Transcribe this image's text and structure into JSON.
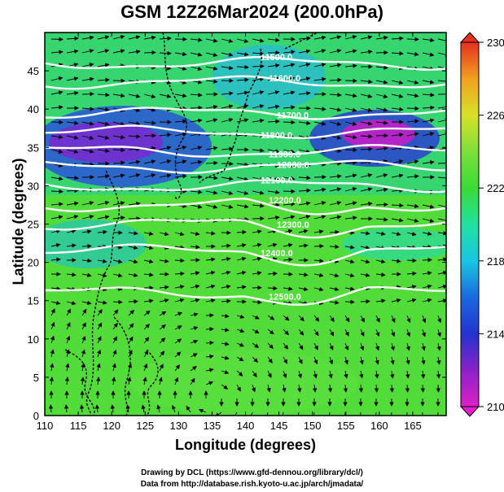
{
  "title": "GSM 12Z26Mar2024 (200.0hPa)",
  "axes": {
    "xlabel": "Longitude (degrees)",
    "ylabel": "Latitude  (degrees)",
    "xticks": [
      "110",
      "115",
      "120",
      "125",
      "130",
      "135",
      "140",
      "145",
      "150",
      "155",
      "160",
      "165"
    ],
    "yticks": [
      "0",
      "5",
      "10",
      "15",
      "20",
      "25",
      "30",
      "35",
      "40",
      "45"
    ],
    "xlim": [
      110,
      170
    ],
    "ylim": [
      0,
      50
    ]
  },
  "colorbar": {
    "ticks": [
      "210",
      "214",
      "218",
      "222",
      "226",
      "230"
    ],
    "range": [
      210,
      230
    ]
  },
  "contours": [
    {
      "label": "11500.0",
      "lat": 46
    },
    {
      "label": "11600.0",
      "lat": 43.5
    },
    {
      "label": "11700.0",
      "lat": 39.5
    },
    {
      "label": "11800.0",
      "lat": 37
    },
    {
      "label": "11900.0",
      "lat": 34.5
    },
    {
      "label": "12000.0",
      "lat": 32.5
    },
    {
      "label": "12100.0",
      "lat": 30
    },
    {
      "label": "12200.0",
      "lat": 27.5
    },
    {
      "label": "12300.0",
      "lat": 25
    },
    {
      "label": "12400.0",
      "lat": 21.5
    },
    {
      "label": "12500.0",
      "lat": 16
    }
  ],
  "credits": {
    "line1": "Drawing by DCL (https://www.gfd-dennou.org/library/dcl/)",
    "line2": "Data from http://database.rish.kyoto-u.ac.jp/arch/jmadata/"
  },
  "colors": {
    "temp_warm": "#7ee03a",
    "temp_cold": "#2033c8",
    "temp_min": "#e21cc8",
    "contour": "#ffffff",
    "coast": "#000000"
  }
}
